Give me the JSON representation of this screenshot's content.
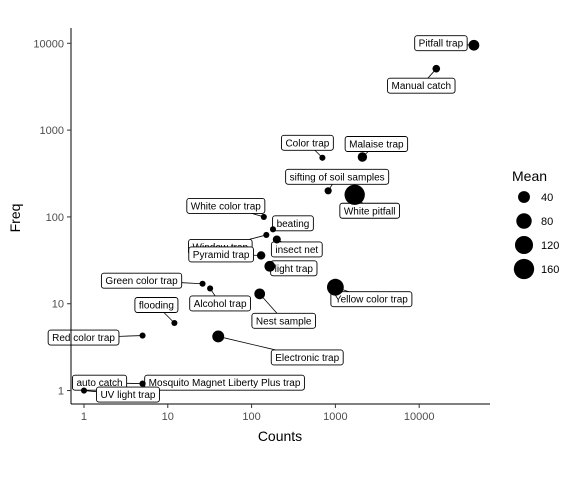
{
  "chart_data": {
    "type": "scatter",
    "title": "",
    "xlabel": "Counts",
    "ylabel": "Freq",
    "x_scale": "log10",
    "y_scale": "log10",
    "xlim": [
      0.7,
      70000
    ],
    "ylim": [
      0.7,
      15000
    ],
    "x_ticks": [
      {
        "value": 1,
        "label": "1"
      },
      {
        "value": 10,
        "label": "10"
      },
      {
        "value": 100,
        "label": "100"
      },
      {
        "value": 1000,
        "label": "1000"
      },
      {
        "value": 10000,
        "label": "10000"
      }
    ],
    "y_ticks": [
      {
        "value": 1,
        "label": "1"
      },
      {
        "value": 10,
        "label": "10"
      },
      {
        "value": 100,
        "label": "100"
      },
      {
        "value": 1000,
        "label": "1000"
      },
      {
        "value": 10000,
        "label": "10000"
      }
    ],
    "grid": false,
    "legend": {
      "title": "Mean",
      "placement": "right",
      "entries": [
        {
          "label": "40",
          "value": 40
        },
        {
          "label": "80",
          "value": 80
        },
        {
          "label": "120",
          "value": 120
        },
        {
          "label": "160",
          "value": 160
        }
      ]
    },
    "points": [
      {
        "name": "Pitfall trap",
        "x": 45000,
        "y": 9500,
        "mean": 30
      },
      {
        "name": "Manual catch",
        "x": 16000,
        "y": 5100,
        "mean": 10
      },
      {
        "name": "Color trap",
        "x": 700,
        "y": 480,
        "mean": 4
      },
      {
        "name": "Malaise trap",
        "x": 2100,
        "y": 490,
        "mean": 20
      },
      {
        "name": "sifting of soil samples",
        "x": 820,
        "y": 200,
        "mean": 8
      },
      {
        "name": "White pitfall",
        "x": 1700,
        "y": 180,
        "mean": 160
      },
      {
        "name": "White color trap",
        "x": 140,
        "y": 100,
        "mean": 4
      },
      {
        "name": "beating",
        "x": 180,
        "y": 72,
        "mean": 4
      },
      {
        "name": "Window trap",
        "x": 150,
        "y": 62,
        "mean": 4
      },
      {
        "name": "insect net",
        "x": 200,
        "y": 55,
        "mean": 12
      },
      {
        "name": "Green color trap",
        "x": 26,
        "y": 17,
        "mean": 4
      },
      {
        "name": "Pyramid trap",
        "x": 130,
        "y": 36,
        "mean": 14
      },
      {
        "name": "light trap",
        "x": 165,
        "y": 27,
        "mean": 30
      },
      {
        "name": "flooding",
        "x": 12,
        "y": 6,
        "mean": 4
      },
      {
        "name": "Alcohol trap",
        "x": 32,
        "y": 15,
        "mean": 4
      },
      {
        "name": "Yellow color trap",
        "x": 1000,
        "y": 15.5,
        "mean": 100
      },
      {
        "name": "Red color trap",
        "x": 5,
        "y": 4.3,
        "mean": 4
      },
      {
        "name": "Nest sample",
        "x": 125,
        "y": 13,
        "mean": 30
      },
      {
        "name": "Electronic trap",
        "x": 40,
        "y": 4.2,
        "mean": 40
      },
      {
        "name": "auto catch",
        "x": 5,
        "y": 1.2,
        "mean": 4
      },
      {
        "name": "Mosquito Magnet Liberty Plus trap",
        "x": 5,
        "y": 1.2,
        "mean": 4
      },
      {
        "name": "UV light trap",
        "x": 1,
        "y": 1,
        "mean": 4
      }
    ]
  }
}
